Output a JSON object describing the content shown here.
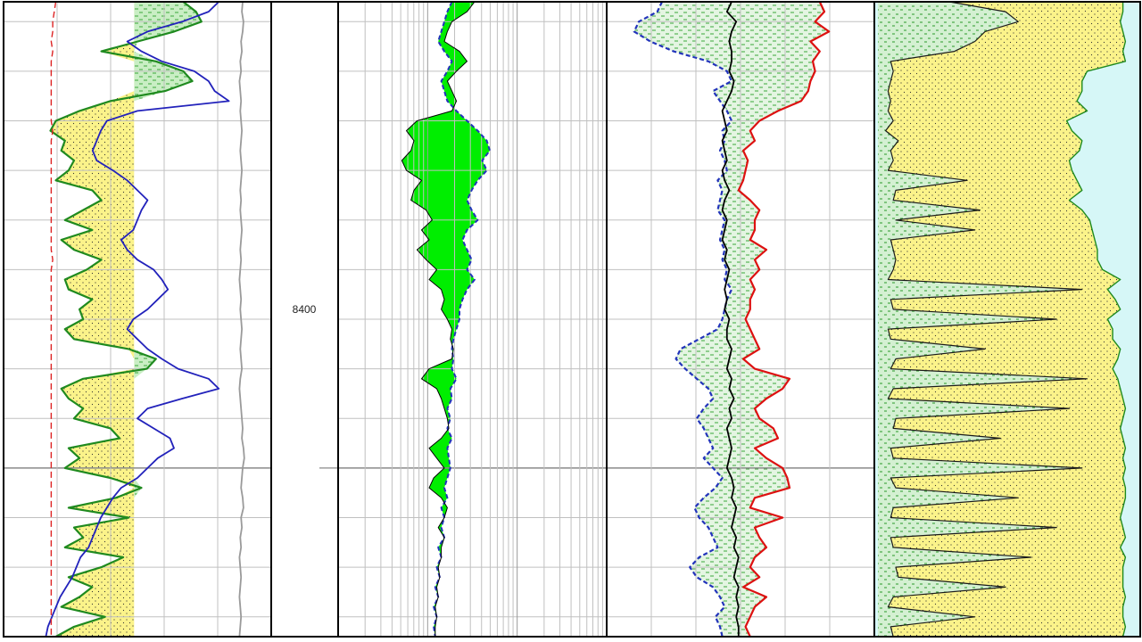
{
  "chart_data": {
    "type": "well-log",
    "depth_axis": {
      "marked_depth": 8400,
      "marked_depth_label": "8400",
      "range": [
        8306,
        8434
      ],
      "major_interval": 10
    },
    "depth_samples": [
      8306,
      8308,
      8310,
      8312,
      8314,
      8316,
      8318,
      8320,
      8322,
      8324,
      8326,
      8328,
      8330,
      8332,
      8334,
      8336,
      8338,
      8340,
      8342,
      8344,
      8346,
      8348,
      8350,
      8352,
      8354,
      8356,
      8358,
      8360,
      8362,
      8364,
      8366,
      8368,
      8370,
      8372,
      8374,
      8376,
      8378,
      8380,
      8382,
      8384,
      8386,
      8388,
      8390,
      8392,
      8394,
      8396,
      8398,
      8400,
      8402,
      8404,
      8406,
      8408,
      8410,
      8412,
      8414,
      8416,
      8418,
      8420,
      8422,
      8424,
      8426,
      8428,
      8430,
      8432,
      8434
    ],
    "tracks": [
      {
        "id": "track-1",
        "grid": "linear",
        "divisions": 5,
        "sand_shale_cutoff": 0.58,
        "sand_fill_color": "#fbf38a",
        "shale_fill_color": "#c9eec4",
        "curves": [
          {
            "id": "gamma-ray",
            "color": "#1f8a1f",
            "scale": [
              0,
              1
            ],
            "values": [
              0.85,
              0.92,
              0.95,
              0.8,
              0.6,
              0.4,
              0.7,
              0.85,
              0.9,
              0.75,
              0.45,
              0.28,
              0.15,
              0.12,
              0.2,
              0.18,
              0.25,
              0.22,
              0.15,
              0.35,
              0.4,
              0.3,
              0.2,
              0.35,
              0.18,
              0.25,
              0.4,
              0.32,
              0.2,
              0.22,
              0.35,
              0.28,
              0.3,
              0.2,
              0.25,
              0.55,
              0.7,
              0.65,
              0.3,
              0.18,
              0.22,
              0.3,
              0.25,
              0.45,
              0.5,
              0.22,
              0.28,
              0.2,
              0.45,
              0.62,
              0.48,
              0.22,
              0.55,
              0.25,
              0.3,
              0.2,
              0.52,
              0.4,
              0.22,
              0.35,
              0.28,
              0.18,
              0.42,
              0.25,
              0.15
            ]
          },
          {
            "id": "deep-resistivity",
            "color": "#2222bb",
            "scale": [
              0,
              1
            ],
            "values": [
              0.9,
              0.85,
              0.72,
              0.55,
              0.45,
              0.52,
              0.62,
              0.78,
              0.85,
              0.88,
              0.95,
              0.5,
              0.35,
              0.32,
              0.3,
              0.28,
              0.3,
              0.38,
              0.45,
              0.5,
              0.55,
              0.52,
              0.5,
              0.48,
              0.42,
              0.45,
              0.5,
              0.58,
              0.62,
              0.65,
              0.6,
              0.55,
              0.48,
              0.45,
              0.5,
              0.55,
              0.62,
              0.7,
              0.85,
              0.9,
              0.72,
              0.55,
              0.5,
              0.58,
              0.66,
              0.68,
              0.6,
              0.55,
              0.5,
              0.42,
              0.38,
              0.35,
              0.32,
              0.3,
              0.28,
              0.26,
              0.22,
              0.2,
              0.18,
              0.15,
              0.12,
              0.1,
              0.08,
              0.06,
              0.05
            ]
          },
          {
            "id": "caliper",
            "color": "#9a9a9a",
            "scale": [
              0,
              1
            ],
            "values": [
              0.8,
              0.79,
              0.81,
              0.8,
              0.78,
              0.79,
              0.77,
              0.78,
              0.76,
              0.77,
              0.78,
              0.77,
              0.78,
              0.79,
              0.78,
              0.77,
              0.78,
              0.79,
              0.78,
              0.77,
              0.78,
              0.77,
              0.78,
              0.79,
              0.78,
              0.77,
              0.78,
              0.77,
              0.76,
              0.77,
              0.78,
              0.77,
              0.78,
              0.79,
              0.78,
              0.77,
              0.78,
              0.79,
              0.77,
              0.76,
              0.77,
              0.78,
              0.79,
              0.8,
              0.79,
              0.81,
              0.82,
              0.8,
              0.79,
              0.78,
              0.8,
              0.81,
              0.78,
              0.79,
              0.77,
              0.78,
              0.76,
              0.77,
              0.78,
              0.77,
              0.76,
              0.77,
              0.78,
              0.77,
              0.76
            ]
          },
          {
            "id": "bit-size",
            "color": "#dd2222",
            "dashed": true,
            "scale": [
              0,
              1
            ],
            "values": [
              0.25,
              0.24,
              0.23,
              0.23,
              0.22,
              0.23,
              0.22,
              0.22,
              0.22,
              0.22,
              0.22,
              0.22,
              0.22,
              0.23,
              0.22,
              0.22,
              0.22,
              0.22,
              0.22,
              0.22,
              0.22,
              0.22,
              0.22,
              0.22,
              0.22,
              0.22,
              0.23,
              0.22,
              0.22,
              0.22,
              0.22,
              0.22,
              0.22,
              0.22,
              0.22,
              0.22,
              0.22,
              0.22,
              0.22,
              0.22,
              0.22,
              0.22,
              0.22,
              0.22,
              0.22,
              0.22,
              0.22,
              0.22,
              0.22,
              0.22,
              0.22,
              0.22,
              0.22,
              0.22,
              0.22,
              0.22,
              0.22,
              0.22,
              0.22,
              0.22,
              0.22,
              0.22,
              0.22,
              0.22,
              0.22
            ]
          }
        ]
      },
      {
        "id": "track-2",
        "grid": "logarithmic",
        "decades": 3,
        "shaded_fill_color": "#00ee00",
        "curves": [
          {
            "id": "shallow-resistivity",
            "color": "#2233bb",
            "dashed": true,
            "scale": [
              0,
              1
            ],
            "values": [
              0.45,
              0.42,
              0.4,
              0.38,
              0.36,
              0.4,
              0.45,
              0.42,
              0.38,
              0.4,
              0.42,
              0.48,
              0.55,
              0.62,
              0.68,
              0.7,
              0.65,
              0.68,
              0.62,
              0.58,
              0.55,
              0.58,
              0.62,
              0.55,
              0.52,
              0.55,
              0.58,
              0.55,
              0.6,
              0.55,
              0.52,
              0.5,
              0.5,
              0.48,
              0.46,
              0.45,
              0.46,
              0.45,
              0.48,
              0.44,
              0.45,
              0.42,
              0.44,
              0.42,
              0.45,
              0.42,
              0.43,
              0.44,
              0.42,
              0.4,
              0.42,
              0.38,
              0.4,
              0.38,
              0.4,
              0.36,
              0.38,
              0.35,
              0.37,
              0.34,
              0.36,
              0.33,
              0.35,
              0.33,
              0.34
            ]
          },
          {
            "id": "medium-resistivity",
            "color": "#000000",
            "scale": [
              0,
              1
            ],
            "values": [
              0.6,
              0.55,
              0.45,
              0.42,
              0.4,
              0.5,
              0.55,
              0.48,
              0.42,
              0.45,
              0.48,
              0.45,
              0.22,
              0.15,
              0.2,
              0.18,
              0.12,
              0.15,
              0.25,
              0.2,
              0.18,
              0.28,
              0.32,
              0.25,
              0.3,
              0.22,
              0.28,
              0.35,
              0.3,
              0.38,
              0.4,
              0.38,
              0.42,
              0.45,
              0.44,
              0.46,
              0.45,
              0.3,
              0.25,
              0.35,
              0.38,
              0.4,
              0.42,
              0.43,
              0.38,
              0.3,
              0.35,
              0.4,
              0.33,
              0.3,
              0.38,
              0.42,
              0.4,
              0.36,
              0.4,
              0.38,
              0.38,
              0.36,
              0.37,
              0.35,
              0.36,
              0.34,
              0.35,
              0.34,
              0.34
            ]
          }
        ]
      },
      {
        "id": "track-3",
        "grid": "linear",
        "divisions": 6,
        "crossover_fill_color": "#ffe600",
        "separation_fill_color": "#d8f2d4",
        "curves": [
          {
            "id": "neutron-porosity",
            "color": "#2233bb",
            "dashed": true,
            "scale": [
              0,
              1
            ],
            "values": [
              0.2,
              0.18,
              0.1,
              0.08,
              0.15,
              0.25,
              0.4,
              0.48,
              0.5,
              0.42,
              0.45,
              0.48,
              0.5,
              0.46,
              0.47,
              0.45,
              0.47,
              0.48,
              0.44,
              0.46,
              0.45,
              0.44,
              0.47,
              0.46,
              0.45,
              0.47,
              0.46,
              0.48,
              0.47,
              0.5,
              0.48,
              0.47,
              0.46,
              0.44,
              0.36,
              0.28,
              0.26,
              0.3,
              0.35,
              0.4,
              0.42,
              0.38,
              0.35,
              0.38,
              0.4,
              0.42,
              0.38,
              0.42,
              0.46,
              0.43,
              0.38,
              0.34,
              0.36,
              0.4,
              0.42,
              0.44,
              0.36,
              0.32,
              0.35,
              0.42,
              0.45,
              0.47,
              0.43,
              0.45,
              0.46
            ]
          },
          {
            "id": "bulk-density",
            "color": "#dd1111",
            "scale": [
              0,
              1
            ],
            "values": [
              0.88,
              0.9,
              0.86,
              0.92,
              0.84,
              0.88,
              0.85,
              0.86,
              0.84,
              0.83,
              0.8,
              0.7,
              0.62,
              0.58,
              0.6,
              0.55,
              0.57,
              0.56,
              0.55,
              0.53,
              0.58,
              0.62,
              0.6,
              0.6,
              0.58,
              0.65,
              0.6,
              0.62,
              0.58,
              0.6,
              0.58,
              0.58,
              0.56,
              0.58,
              0.6,
              0.62,
              0.55,
              0.6,
              0.75,
              0.72,
              0.65,
              0.6,
              0.62,
              0.68,
              0.7,
              0.6,
              0.65,
              0.72,
              0.74,
              0.75,
              0.6,
              0.58,
              0.72,
              0.6,
              0.62,
              0.65,
              0.6,
              0.58,
              0.62,
              0.55,
              0.65,
              0.6,
              0.58,
              0.56,
              0.58
            ]
          },
          {
            "id": "photoelectric",
            "color": "#000000",
            "scale": [
              0,
              1
            ],
            "values": [
              0.5,
              0.48,
              0.52,
              0.5,
              0.49,
              0.5,
              0.5,
              0.49,
              0.51,
              0.5,
              0.48,
              0.46,
              0.47,
              0.48,
              0.46,
              0.47,
              0.48,
              0.46,
              0.47,
              0.49,
              0.47,
              0.46,
              0.48,
              0.47,
              0.46,
              0.48,
              0.47,
              0.49,
              0.48,
              0.47,
              0.48,
              0.47,
              0.49,
              0.48,
              0.48,
              0.5,
              0.49,
              0.48,
              0.5,
              0.49,
              0.51,
              0.49,
              0.5,
              0.48,
              0.49,
              0.5,
              0.49,
              0.48,
              0.5,
              0.51,
              0.5,
              0.52,
              0.51,
              0.5,
              0.52,
              0.51,
              0.53,
              0.52,
              0.51,
              0.53,
              0.52,
              0.53,
              0.52,
              0.53,
              0.53
            ]
          }
        ]
      },
      {
        "id": "track-4",
        "grid": "none",
        "fill_colors": {
          "shale": "#d4f0d2",
          "sand": "#fbf38a",
          "pore": "#00ee00",
          "background": "#d6f7f7"
        },
        "curves": [
          {
            "id": "shale-volume",
            "color": "#1a1a1a",
            "scale": [
              0,
              1
            ],
            "values": [
              0.28,
              0.5,
              0.55,
              0.42,
              0.38,
              0.3,
              0.05,
              0.06,
              0.05,
              0.04,
              0.05,
              0.04,
              0.06,
              0.03,
              0.08,
              0.05,
              0.06,
              0.04,
              0.35,
              0.07,
              0.06,
              0.4,
              0.07,
              0.38,
              0.05,
              0.06,
              0.07,
              0.06,
              0.04,
              0.8,
              0.05,
              0.06,
              0.7,
              0.04,
              0.05,
              0.42,
              0.07,
              0.05,
              0.82,
              0.06,
              0.04,
              0.75,
              0.07,
              0.06,
              0.48,
              0.05,
              0.06,
              0.8,
              0.05,
              0.07,
              0.55,
              0.06,
              0.05,
              0.7,
              0.05,
              0.06,
              0.6,
              0.07,
              0.08,
              0.5,
              0.06,
              0.04,
              0.38,
              0.05,
              0.06
            ]
          },
          {
            "id": "effective-porosity",
            "color": "#1f8a1f",
            "scale": [
              0,
              1
            ],
            "values": [
              0.96,
              0.96,
              0.95,
              0.96,
              0.97,
              0.96,
              0.97,
              0.82,
              0.8,
              0.8,
              0.78,
              0.82,
              0.74,
              0.76,
              0.8,
              0.79,
              0.75,
              0.76,
              0.78,
              0.8,
              0.75,
              0.8,
              0.83,
              0.84,
              0.85,
              0.86,
              0.86,
              0.88,
              0.95,
              0.9,
              0.93,
              0.95,
              0.9,
              0.92,
              0.92,
              0.95,
              0.94,
              0.92,
              0.94,
              0.95,
              0.96,
              0.97,
              0.96,
              0.95,
              0.96,
              0.97,
              0.96,
              0.97,
              0.96,
              0.97,
              0.97,
              0.96,
              0.95,
              0.96,
              0.97,
              0.95,
              0.97,
              0.96,
              0.96,
              0.96,
              0.97,
              0.96,
              0.96,
              0.97,
              0.96
            ]
          }
        ]
      }
    ]
  }
}
